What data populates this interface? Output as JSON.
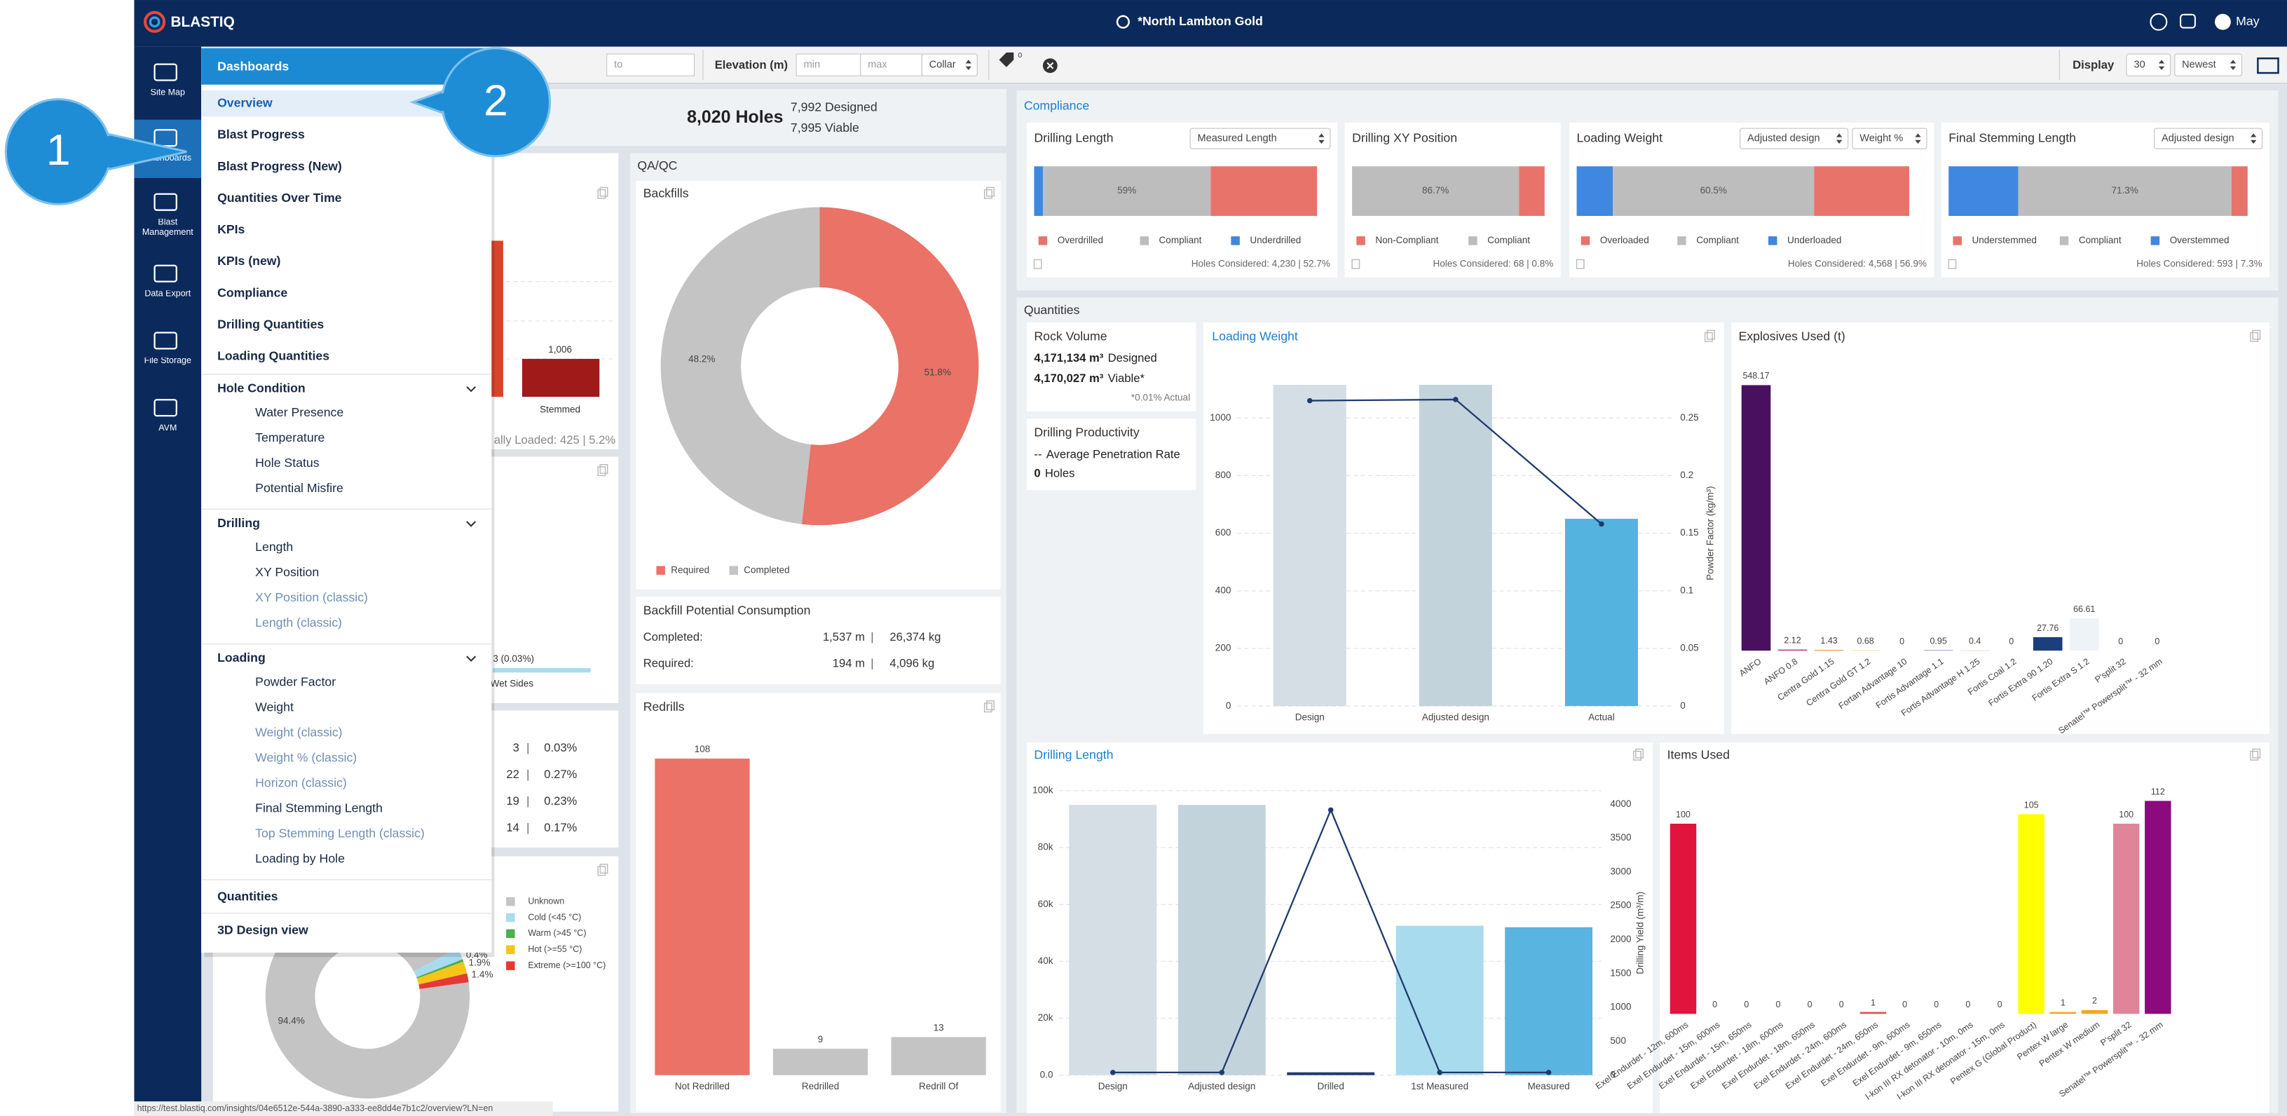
{
  "header": {
    "brand": "BLASTIQ",
    "site": "*North Lambton Gold",
    "user": "May"
  },
  "sidebar": [
    "Site Map",
    "Dashboards",
    "Blast Management",
    "Data Export",
    "File Storage",
    "AVM"
  ],
  "callouts": [
    "1",
    "2"
  ],
  "filters": {
    "to": "to",
    "elevation_label": "Elevation (m)",
    "min": "min",
    "max": "max",
    "collar": "Collar",
    "tags": "0",
    "display_label": "Display",
    "page_size": "30",
    "sort": "Newest"
  },
  "menu": {
    "title": "Dashboards",
    "items": [
      {
        "label": "Overview",
        "selected": true
      },
      {
        "label": "Blast Progress"
      },
      {
        "label": "Blast Progress (New)"
      },
      {
        "label": "Quantities Over Time"
      },
      {
        "label": "KPIs"
      },
      {
        "label": "KPIs (new)"
      },
      {
        "label": "Compliance"
      },
      {
        "label": "Drilling Quantities"
      },
      {
        "label": "Loading Quantities"
      }
    ],
    "groups": [
      {
        "label": "Hole Condition",
        "items": [
          {
            "label": "Water Presence"
          },
          {
            "label": "Temperature"
          },
          {
            "label": "Hole Status"
          },
          {
            "label": "Potential Misfire"
          }
        ]
      },
      {
        "label": "Drilling",
        "items": [
          {
            "label": "Length"
          },
          {
            "label": "XY Position"
          },
          {
            "label": "XY Position (classic)",
            "muted": true
          },
          {
            "label": "Length (classic)",
            "muted": true
          }
        ]
      },
      {
        "label": "Loading",
        "items": [
          {
            "label": "Powder Factor"
          },
          {
            "label": "Weight"
          },
          {
            "label": "Weight (classic)",
            "muted": true
          },
          {
            "label": "Weight % (classic)",
            "muted": true
          },
          {
            "label": "Horizon (classic)",
            "muted": true
          },
          {
            "label": "Final Stemming Length"
          },
          {
            "label": "Top Stemming Length (classic)",
            "muted": true
          },
          {
            "label": "Loading by Hole"
          }
        ]
      }
    ],
    "footer_items": [
      "Quantities",
      "3D Design view"
    ]
  },
  "summary": {
    "holes": "8,020 Holes",
    "designed": "7,992 Designed",
    "viable": "7,995 Viable"
  },
  "hole_status": {
    "stemmed_value": "1,006",
    "stemmed": "Stemmed",
    "partially_loaded": "ally Loaded: 425 | 5.2%"
  },
  "water": {
    "label": "3 (0.03%)",
    "category": "Wet Sides"
  },
  "hole_counts": [
    [
      "3",
      "|",
      "0.03%"
    ],
    [
      "22",
      "|",
      "0.27%"
    ],
    [
      "19",
      "|",
      "0.23%"
    ],
    [
      "14",
      "|",
      "0.17%"
    ]
  ],
  "temperature": {
    "type": "pie",
    "categories": [
      "Unknown",
      "Cold (<45 °C)",
      "Warm (>45 °C)",
      "Hot (>=55 °C)",
      "Extreme (>=100 °C)"
    ],
    "colors": [
      "#c4c4c4",
      "#a9dbef",
      "#4caf50",
      "#f5c518",
      "#e53935"
    ],
    "values": [
      94.4,
      1.9,
      0.4,
      1.9,
      1.4
    ],
    "value_labels": [
      "94.4%",
      null,
      "0.4%",
      "1.9%",
      "1.4%"
    ]
  },
  "qaqc": {
    "title": "QA/QC",
    "backfills": {
      "type": "pie",
      "title": "Backfills",
      "categories": [
        "Required",
        "Completed"
      ],
      "colors": [
        "#ea7266",
        "#c4c4c4"
      ],
      "values": [
        51.8,
        48.2
      ],
      "value_labels": [
        "51.8%",
        "48.2%"
      ]
    },
    "consumption": {
      "title": "Backfill Potential Consumption",
      "rows": [
        [
          "Completed:",
          "1,537 m",
          "|",
          "26,374 kg"
        ],
        [
          "Required:",
          "194 m",
          "|",
          "4,096 kg"
        ]
      ]
    },
    "redrills": {
      "type": "bar",
      "title": "Redrills",
      "categories": [
        "Not Redrilled",
        "Redrilled",
        "Redrill Of"
      ],
      "colors": [
        "#ea7266",
        "#c4c4c4",
        "#c4c4c4"
      ],
      "values": [
        108,
        9,
        13
      ]
    }
  },
  "compliance": {
    "title": "Compliance",
    "cards": [
      {
        "title": "Drilling Length",
        "selects": [
          "Measured Length"
        ],
        "series": [
          {
            "name": "Underdrilled",
            "color": "#3f87e0",
            "values": [
              3.1
            ]
          },
          {
            "name": "Compliant",
            "color": "#bdbdbd",
            "values": [
              59.3
            ],
            "value_labels": [
              "59%"
            ]
          },
          {
            "name": "Overdrilled",
            "color": "#e8736a",
            "values": [
              37.6
            ]
          }
        ],
        "footer": "Holes Considered: 4,230 | 52.7%"
      },
      {
        "title": "Drilling XY Position",
        "selects": [],
        "series": [
          {
            "name": "Compliant",
            "color": "#bdbdbd",
            "values": [
              86.7
            ],
            "value_labels": [
              "86.7%"
            ]
          },
          {
            "name": "Non-Compliant",
            "color": "#e8736a",
            "values": [
              13.3
            ]
          }
        ],
        "footer": "Holes Considered: 68 | 0.8%"
      },
      {
        "title": "Loading Weight",
        "selects": [
          "Adjusted design",
          "Weight %"
        ],
        "series": [
          {
            "name": "Underloaded",
            "color": "#3f87e0",
            "values": [
              10.9
            ]
          },
          {
            "name": "Compliant",
            "color": "#bdbdbd",
            "values": [
              60.5
            ],
            "value_labels": [
              "60.5%"
            ]
          },
          {
            "name": "Overloaded",
            "color": "#e8736a",
            "values": [
              28.6
            ]
          }
        ],
        "footer": "Holes Considered: 4,568 | 56.9%"
      },
      {
        "title": "Final Stemming Length",
        "selects": [
          "Adjusted design"
        ],
        "series": [
          {
            "name": "Overstemmed",
            "color": "#3f87e0",
            "values": [
              23.3
            ]
          },
          {
            "name": "Compliant",
            "color": "#bdbdbd",
            "values": [
              71.3
            ],
            "value_labels": [
              "71.3%"
            ]
          },
          {
            "name": "Understemmed",
            "color": "#e8736a",
            "values": [
              5.4
            ]
          }
        ],
        "footer": "Holes Considered: 593 | 7.3%"
      }
    ]
  },
  "quantities": {
    "title": "Quantities",
    "rock_volume": {
      "title": "Rock Volume",
      "designed_value": "4,171,134 m³",
      "designed_label": "Designed",
      "viable_value": "4,170,027 m³",
      "viable_label": "Viable*",
      "actual": "*0.01% Actual"
    },
    "productivity": {
      "title": "Drilling Productivity",
      "rate_value": "--",
      "rate_label": "Average Penetration Rate",
      "holes_value": "0",
      "holes_label": "Holes"
    },
    "loading_weight": {
      "type": "bar",
      "title": "Loading Weight",
      "categories": [
        "Design",
        "Adjusted design",
        "Actual"
      ],
      "series": [
        {
          "colors": [
            "#d4dee4",
            "#c3d3dc",
            "#55b3e0"
          ],
          "values": [
            1115,
            1115,
            650
          ]
        },
        {
          "type": "line",
          "axis": "y2",
          "color": "#1f3a6e",
          "values": [
            0.265,
            0.266,
            0.158
          ]
        }
      ],
      "ylim": [
        0,
        1200
      ],
      "yticks": [
        0,
        200,
        400,
        600,
        800,
        1000
      ],
      "y2lim": [
        0,
        0.3
      ],
      "y2ticks": [
        0,
        0.05,
        0.1,
        0.15,
        0.2,
        0.25
      ],
      "y2label": "Powder Factor (kg/m³)",
      "grid": true
    },
    "explosives": {
      "type": "bar",
      "title": "Explosives Used (t)",
      "categories": [
        "ANFO",
        "ANFO 0.8",
        "Centra Gold 1.15",
        "Centra Gold GT 1.2",
        "Fortan Advantage 10",
        "Fortis Advantage 1.1",
        "Fortis Advantage H 1.25",
        "Fortis Coal 1.2",
        "Fortis Extra 90 1.20",
        "Fortis Extra S 1.2",
        "P'split 32",
        "Senatel™ Powersplit™ - 32 mm"
      ],
      "colors": [
        "#4a1060",
        "#b5307a",
        "#e8843a",
        "#f2c14e",
        "#cccccc",
        "#8a5cc2",
        "#e86a4a",
        "#999999",
        "#1b3f7a",
        "#eef3f8",
        "#cccccc",
        "#cccccc"
      ],
      "values": [
        548.17,
        2.12,
        1.43,
        0.68,
        0,
        0.95,
        0.4,
        0,
        27.76,
        66.61,
        0,
        0
      ]
    },
    "drilling_length": {
      "type": "bar",
      "title": "Drilling Length",
      "categories": [
        "Design",
        "Adjusted design",
        "Drilled",
        "1st Measured",
        "Measured"
      ],
      "series": [
        {
          "colors": [
            "#d4dee4",
            "#c3d3dc",
            "#1f3a6e",
            "#a9dbef",
            "#5ab4e0"
          ],
          "values": [
            95000,
            95000,
            1000,
            52500,
            52000
          ]
        },
        {
          "type": "line",
          "axis": "y2",
          "color": "#1f3a6e",
          "values": [
            40,
            40,
            3915,
            40,
            40
          ]
        }
      ],
      "ylim": [
        0,
        100000
      ],
      "yticks": [
        {
          "value": 0,
          "label": "0.0"
        },
        {
          "value": 20000,
          "label": "20k"
        },
        {
          "value": 40000,
          "label": "40k"
        },
        {
          "value": 60000,
          "label": "60k"
        },
        {
          "value": 80000,
          "label": "80k"
        },
        {
          "value": 100000,
          "label": "100k"
        }
      ],
      "y2lim": [
        0,
        4200
      ],
      "y2ticks": [
        0,
        500,
        1000,
        1500,
        2000,
        2500,
        3000,
        3500,
        4000
      ],
      "y2label": "Drilling Yield (m³/m)",
      "grid": true
    },
    "items": {
      "type": "bar",
      "title": "Items Used",
      "categories": [
        "Exel Endurdet - 12m, 600ms",
        "Exel Endurdet - 15m, 600ms",
        "Exel Endurdet - 15m, 650ms",
        "Exel Endurdet - 18m, 600ms",
        "Exel Endurdet - 18m, 650ms",
        "Exel Endurdet - 24m, 600ms",
        "Exel Endurdet - 24m, 650ms",
        "Exel Endurdet - 9m, 600ms",
        "Exel Endurdet - 9m, 650ms",
        "I-kon III RX detonator - 10m, 0ms",
        "I-kon III RX detonator - 15m, 0ms",
        "Pentex G (Global Product)",
        "Pentex W large",
        "Pentex W medium",
        "P'split 32",
        "Senatel™ Powersplit™ - 32 mm"
      ],
      "colors": [
        "#e0143c",
        "#cccccc",
        "#cccccc",
        "#cccccc",
        "#cccccc",
        "#cccccc",
        "#e05050",
        "#cccccc",
        "#cccccc",
        "#cccccc",
        "#cccccc",
        "#ffff00",
        "#f5a623",
        "#f5a623",
        "#e0849a",
        "#8b0a7e"
      ],
      "values": [
        100,
        0,
        0,
        0,
        0,
        0,
        1,
        0,
        0,
        0,
        0,
        105,
        1,
        2,
        100,
        112
      ]
    }
  },
  "status_url": "https://test.blastiq.com/insights/04e6512e-544a-3890-a333-ee8dd4e7b1c2/overview?LN=en"
}
